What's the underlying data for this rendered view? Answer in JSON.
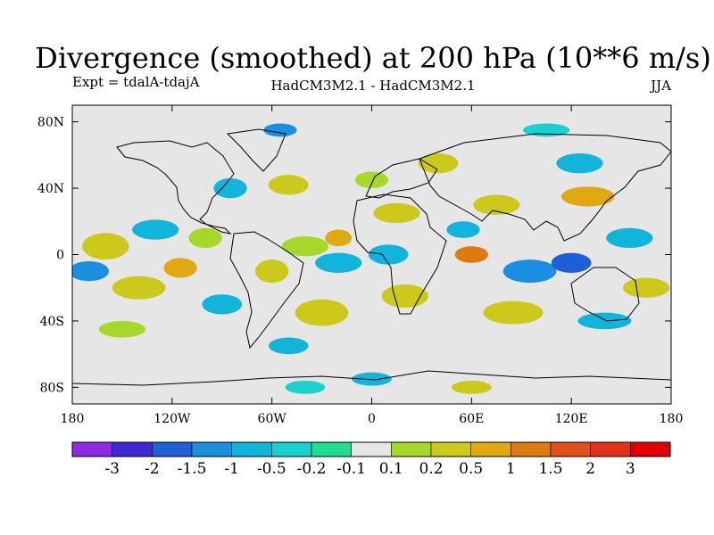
{
  "chart_data": {
    "type": "heatmap",
    "title": "Divergence (smoothed) at 200 hPa (10**6 m/s)",
    "experiment_label": "Expt = tdalA-tdajA",
    "model_label": "HadCM3M2.1 - HadCM3M2.1",
    "season_label": "JJA",
    "x_axis": {
      "range": [
        -180,
        180
      ],
      "ticks": [
        {
          "value": -180,
          "label": "180"
        },
        {
          "value": -120,
          "label": "120W"
        },
        {
          "value": -60,
          "label": "60W"
        },
        {
          "value": 0,
          "label": "0"
        },
        {
          "value": 60,
          "label": "60E"
        },
        {
          "value": 120,
          "label": "120E"
        },
        {
          "value": 180,
          "label": "180"
        }
      ]
    },
    "y_axis": {
      "range": [
        -90,
        90
      ],
      "ticks": [
        {
          "value": 80,
          "label": "80N"
        },
        {
          "value": 40,
          "label": "40N"
        },
        {
          "value": 0,
          "label": "0"
        },
        {
          "value": -40,
          "label": "40S"
        },
        {
          "value": -80,
          "label": "80S"
        }
      ]
    },
    "colorbar": {
      "levels": [
        "-3",
        "-2",
        "-1.5",
        "-1",
        "-0.5",
        "-0.2",
        "-0.1",
        "0.1",
        "0.2",
        "0.5",
        "1",
        "1.5",
        "2",
        "3"
      ],
      "colors": [
        "#8b2be2",
        "#3f2ad6",
        "#1e5fd8",
        "#1a8fe0",
        "#12b4dc",
        "#1ad0d0",
        "#22dc96",
        "#e6e6e6",
        "#a6d82a",
        "#cdc81c",
        "#e0a812",
        "#e07a10",
        "#e05018",
        "#e03018",
        "#e00000"
      ]
    },
    "anomalies": [
      {
        "lon": -160,
        "lat": 5,
        "value": 0.5,
        "rx": 14,
        "ry": 8
      },
      {
        "lon": -170,
        "lat": -10,
        "value": -1,
        "rx": 12,
        "ry": 6
      },
      {
        "lon": -140,
        "lat": -20,
        "value": 0.5,
        "rx": 16,
        "ry": 7
      },
      {
        "lon": -115,
        "lat": -8,
        "value": 1,
        "rx": 10,
        "ry": 6
      },
      {
        "lon": -130,
        "lat": 15,
        "value": -0.5,
        "rx": 14,
        "ry": 6
      },
      {
        "lon": -100,
        "lat": 10,
        "value": 0.2,
        "rx": 10,
        "ry": 6
      },
      {
        "lon": -90,
        "lat": -30,
        "value": -0.5,
        "rx": 12,
        "ry": 6
      },
      {
        "lon": -150,
        "lat": -45,
        "value": 0.2,
        "rx": 14,
        "ry": 5
      },
      {
        "lon": -85,
        "lat": 40,
        "value": -0.5,
        "rx": 10,
        "ry": 6
      },
      {
        "lon": -50,
        "lat": 42,
        "value": 0.5,
        "rx": 12,
        "ry": 6
      },
      {
        "lon": -55,
        "lat": 75,
        "value": -1,
        "rx": 10,
        "ry": 4
      },
      {
        "lon": -40,
        "lat": 5,
        "value": 0.2,
        "rx": 14,
        "ry": 6
      },
      {
        "lon": -20,
        "lat": 10,
        "value": 1,
        "rx": 8,
        "ry": 5
      },
      {
        "lon": -20,
        "lat": -5,
        "value": -0.5,
        "rx": 14,
        "ry": 6
      },
      {
        "lon": -60,
        "lat": -10,
        "value": 0.5,
        "rx": 10,
        "ry": 7
      },
      {
        "lon": -30,
        "lat": -35,
        "value": 0.5,
        "rx": 16,
        "ry": 8
      },
      {
        "lon": -50,
        "lat": -55,
        "value": -0.5,
        "rx": 12,
        "ry": 5
      },
      {
        "lon": 15,
        "lat": 25,
        "value": 0.5,
        "rx": 14,
        "ry": 6
      },
      {
        "lon": 0,
        "lat": 45,
        "value": 0.2,
        "rx": 10,
        "ry": 5
      },
      {
        "lon": 40,
        "lat": 55,
        "value": 0.5,
        "rx": 12,
        "ry": 6
      },
      {
        "lon": 10,
        "lat": 0,
        "value": -0.5,
        "rx": 12,
        "ry": 6
      },
      {
        "lon": 20,
        "lat": -25,
        "value": 0.5,
        "rx": 14,
        "ry": 7
      },
      {
        "lon": 60,
        "lat": 0,
        "value": 1.5,
        "rx": 10,
        "ry": 5
      },
      {
        "lon": 55,
        "lat": 15,
        "value": -0.5,
        "rx": 10,
        "ry": 5
      },
      {
        "lon": 75,
        "lat": 30,
        "value": 0.5,
        "rx": 14,
        "ry": 6
      },
      {
        "lon": 95,
        "lat": -10,
        "value": -1,
        "rx": 16,
        "ry": 7
      },
      {
        "lon": 85,
        "lat": -35,
        "value": 0.5,
        "rx": 18,
        "ry": 7
      },
      {
        "lon": 120,
        "lat": -5,
        "value": -1.5,
        "rx": 12,
        "ry": 6
      },
      {
        "lon": 130,
        "lat": 35,
        "value": 1,
        "rx": 16,
        "ry": 6
      },
      {
        "lon": 125,
        "lat": 55,
        "value": -0.5,
        "rx": 14,
        "ry": 6
      },
      {
        "lon": 155,
        "lat": 10,
        "value": -0.5,
        "rx": 14,
        "ry": 6
      },
      {
        "lon": 165,
        "lat": -20,
        "value": 0.5,
        "rx": 14,
        "ry": 6
      },
      {
        "lon": 140,
        "lat": -40,
        "value": -0.5,
        "rx": 16,
        "ry": 5
      },
      {
        "lon": 105,
        "lat": 75,
        "value": -0.2,
        "rx": 14,
        "ry": 4
      },
      {
        "lon": 0,
        "lat": -75,
        "value": -0.5,
        "rx": 12,
        "ry": 4
      },
      {
        "lon": 60,
        "lat": -80,
        "value": 0.5,
        "rx": 12,
        "ry": 4
      },
      {
        "lon": -40,
        "lat": -80,
        "value": -0.2,
        "rx": 12,
        "ry": 4
      }
    ]
  }
}
